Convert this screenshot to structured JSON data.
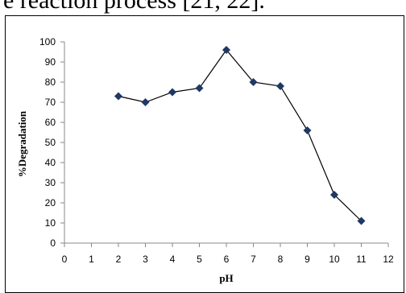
{
  "header_text": "e reaction process [21, 22].",
  "chart_data": {
    "type": "line",
    "title": "",
    "xlabel": "pH",
    "ylabel": "%Degradation",
    "xlim": [
      0,
      12
    ],
    "ylim": [
      0,
      100
    ],
    "x_ticks": [
      0,
      1,
      2,
      3,
      4,
      5,
      6,
      7,
      8,
      9,
      10,
      11,
      12
    ],
    "y_ticks": [
      0,
      10,
      20,
      30,
      40,
      50,
      60,
      70,
      80,
      90,
      100
    ],
    "grid": false,
    "legend": "none",
    "series": [
      {
        "x": [
          2,
          3,
          4,
          5,
          6,
          7,
          8,
          9,
          10,
          11
        ],
        "y": [
          73,
          70,
          75,
          77,
          96,
          80,
          78,
          56,
          24,
          11
        ],
        "color": "#1f3864",
        "marker": "diamond"
      }
    ]
  }
}
